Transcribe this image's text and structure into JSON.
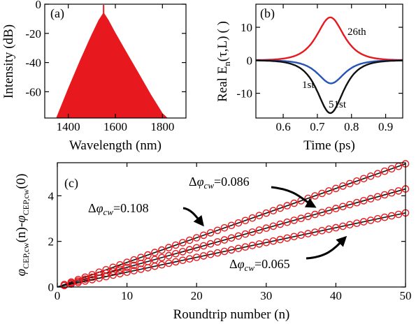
{
  "chart_data": [
    {
      "type": "area",
      "panel_label": "(a)",
      "xlabel": "Wavelength (nm)",
      "ylabel": "Intensity (dB)",
      "xlim": [
        1300,
        1900
      ],
      "ylim": [
        -78,
        0
      ],
      "xticks": [
        1400,
        1600,
        1800
      ],
      "yticks": [
        0,
        -20,
        -40,
        -60
      ],
      "x": [
        1350,
        1400,
        1450,
        1500,
        1530,
        1550,
        1570,
        1600,
        1650,
        1700,
        1750,
        1800,
        1820
      ],
      "y": [
        -78,
        -58,
        -39,
        -21,
        -11,
        -6,
        -11,
        -20,
        -34,
        -48,
        -62,
        -75,
        -78
      ],
      "peak_x": 1550,
      "peak_y": -0.5,
      "color": "#e8191e",
      "grid": false
    },
    {
      "type": "line",
      "panel_label": "(b)",
      "xlabel": "Time (ps)",
      "ylabel_parts": {
        "main": "Real E",
        "sub": "n",
        "arg": "(τ,L)",
        "unit": "(     )"
      },
      "xlim": [
        0.52,
        0.95
      ],
      "ylim": [
        -17.5,
        17
      ],
      "xticks": [
        0.6,
        0.7,
        0.8,
        0.9
      ],
      "yticks": [
        10,
        0,
        -10
      ],
      "grid": false,
      "series": [
        {
          "name": "26th",
          "color": "#e8191e",
          "center": 0.738,
          "amplitude": 13,
          "width": 0.035
        },
        {
          "name": "1st",
          "color": "#2653b8",
          "center": 0.74,
          "amplitude": -7,
          "width": 0.034
        },
        {
          "name": "51st",
          "color": "#111111",
          "center": 0.738,
          "amplitude": -16,
          "width": 0.034
        }
      ]
    },
    {
      "type": "scatter",
      "panel_label": "(c)",
      "xlabel": "Roundtrip number (n)",
      "ylabel_parts": {
        "phi": "φ",
        "sub1": "CEP,cw",
        "mid": "(n)-",
        "phi2": "φ",
        "sub2": "CEP,cw",
        "end": "(0)"
      },
      "xlim": [
        0,
        50
      ],
      "ylim": [
        0,
        5.45
      ],
      "xticks": [
        0,
        10,
        20,
        30,
        40,
        50
      ],
      "yticks": [
        0,
        2,
        4
      ],
      "grid": false,
      "marker_color": "#e8191e",
      "fit_color": "#111111",
      "series": [
        {
          "slope": 0.108,
          "label_value": "=0.108"
        },
        {
          "slope": 0.086,
          "label_value": "=0.086"
        },
        {
          "slope": 0.065,
          "label_value": "=0.065"
        }
      ],
      "annotation_prefix": "Δ",
      "annotation_phi": "φ",
      "annotation_sub": "cw"
    }
  ]
}
